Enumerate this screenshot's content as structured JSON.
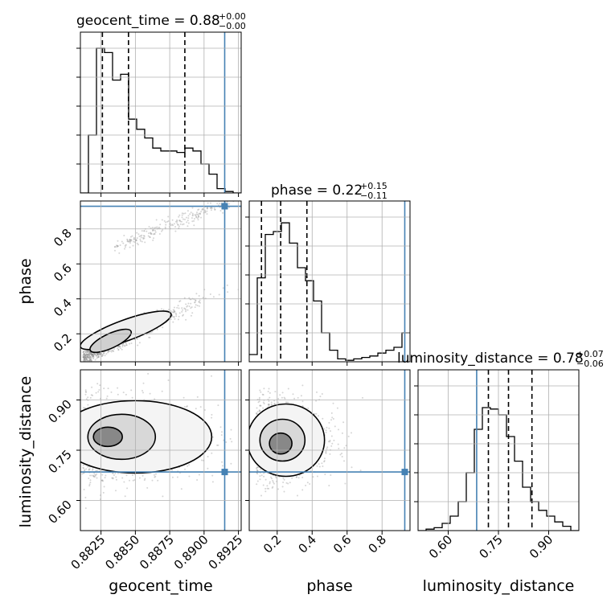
{
  "chart_data": {
    "type": "corner",
    "parameters": [
      "geocent_time",
      "phase",
      "luminosity_distance"
    ],
    "axis_labels": [
      "geocent_time",
      "phase",
      "luminosity_distance"
    ],
    "titles": [
      {
        "text": "geocent_time = 0.88",
        "sup": "+0.00",
        "sub": "−0.00"
      },
      {
        "text": "phase = 0.22",
        "sup": "+0.15",
        "sub": "−0.11"
      },
      {
        "text": "luminosity_distance = 0.78",
        "sup": "+0.07",
        "sub": "−0.06"
      }
    ],
    "ranges": {
      "geocent_time": [
        0.881,
        0.8927
      ],
      "phase": [
        0.04,
        0.96
      ],
      "luminosity_distance": [
        0.51,
        0.99
      ]
    },
    "ticks": {
      "geocent_time": [
        0.8825,
        0.885,
        0.8875,
        0.89,
        0.8925
      ],
      "phase": [
        0.2,
        0.4,
        0.6,
        0.8
      ],
      "luminosity_distance": [
        0.6,
        0.75,
        0.9
      ]
    },
    "tick_labels": {
      "geocent_time": [
        "0.8825",
        "0.8850",
        "0.8875",
        "0.8900",
        "0.8925"
      ],
      "phase": [
        "0.2",
        "0.4",
        "0.6",
        "0.8"
      ],
      "luminosity_distance": [
        "0.60",
        "0.75",
        "0.90"
      ]
    },
    "truths": {
      "geocent_time": 0.8915,
      "phase": 0.93,
      "luminosity_distance": 0.685
    },
    "quantiles": {
      "geocent_time": [
        0.8826,
        0.8845,
        0.8886
      ],
      "phase": [
        0.11,
        0.22,
        0.37
      ],
      "luminosity_distance": [
        0.72,
        0.78,
        0.85
      ]
    },
    "histograms": {
      "geocent_time": {
        "bins": [
          0.881,
          0.8927
        ],
        "counts": [
          0,
          0.4,
          1.0,
          0.97,
          0.78,
          0.82,
          0.51,
          0.44,
          0.38,
          0.31,
          0.29,
          0.29,
          0.28,
          0.31,
          0.29,
          0.2,
          0.13,
          0.03,
          0.01,
          0.0
        ]
      },
      "phase": {
        "bins": [
          0.04,
          0.96
        ],
        "counts": [
          0.05,
          0.58,
          0.88,
          0.9,
          0.96,
          0.82,
          0.65,
          0.56,
          0.42,
          0.2,
          0.08,
          0.02,
          0.01,
          0.02,
          0.03,
          0.04,
          0.06,
          0.08,
          0.1,
          0.2
        ]
      },
      "luminosity_distance": {
        "bins": [
          0.51,
          0.99
        ],
        "counts": [
          0.0,
          0.01,
          0.02,
          0.05,
          0.1,
          0.2,
          0.4,
          0.7,
          0.85,
          0.84,
          0.8,
          0.65,
          0.48,
          0.3,
          0.2,
          0.14,
          0.1,
          0.06,
          0.03,
          0.0
        ]
      }
    },
    "scatter_trends": {
      "phase_vs_geocent_time": {
        "lower_branch": [
          [
            0.881,
            0.06
          ],
          [
            0.8915,
            0.46
          ]
        ],
        "upper_branch": [
          [
            0.8835,
            0.7
          ],
          [
            0.8925,
            0.98
          ]
        ]
      },
      "luminosity_distance_center": 0.78
    },
    "grid": true
  }
}
